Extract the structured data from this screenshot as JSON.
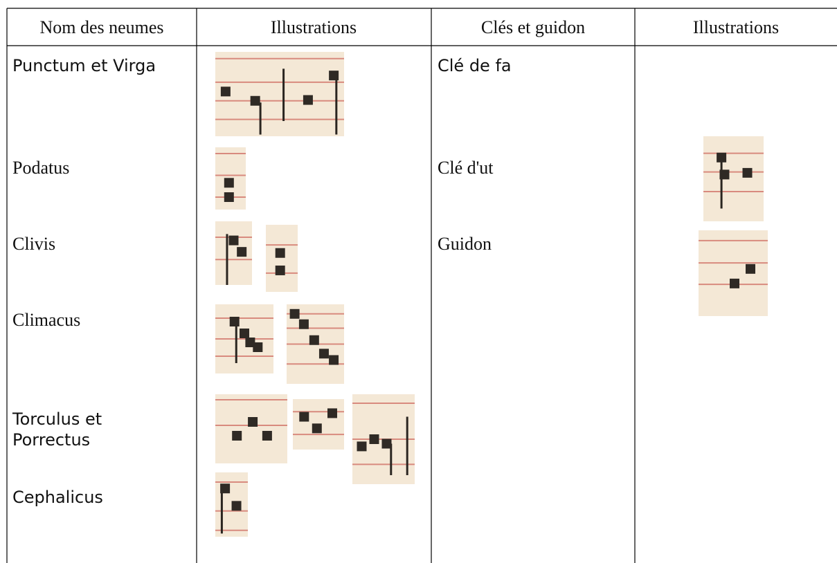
{
  "header": {
    "columns": [
      "Nom des neumes",
      "Illustrations",
      "Clés et guidon",
      "Illustrations"
    ]
  },
  "neumes": [
    "Punctum et Virga",
    "Podatus",
    "Clivis",
    "Climacus",
    "Torculus et Porrectus",
    "Cephalicus"
  ],
  "clefs": [
    "Clé de fa",
    "Clé d'ut",
    "Guidon"
  ]
}
